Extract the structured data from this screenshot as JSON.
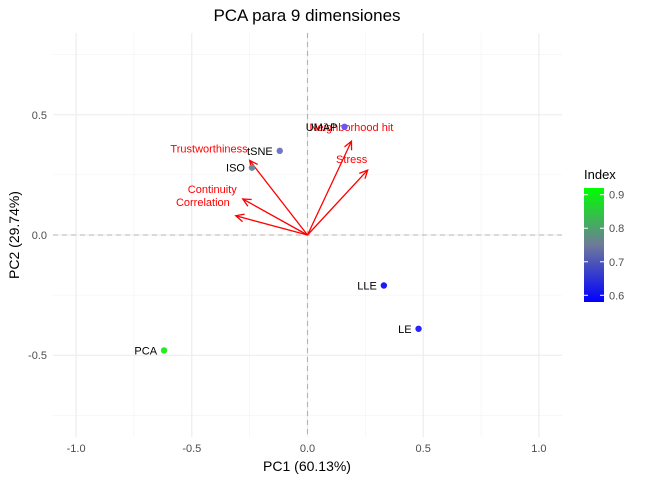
{
  "chart_data": {
    "type": "scatter",
    "title": "PCA para  9 dimensiones",
    "xlabel": "PC1 (60.13%)",
    "ylabel": "PC2 (29.74%)",
    "xlim": [
      -1.1,
      1.1
    ],
    "ylim": [
      -0.84,
      0.84
    ],
    "x_ticks": [
      -1.0,
      -0.5,
      0.0,
      0.5,
      1.0
    ],
    "x_tick_labels": [
      "-1.0",
      "-0.5",
      "0.0",
      "0.5",
      "1.0"
    ],
    "y_ticks": [
      -0.5,
      0.0,
      0.5
    ],
    "y_tick_labels": [
      "-0.5",
      "0.0",
      "0.5"
    ],
    "grid": true,
    "points": [
      {
        "label": "UMAP",
        "x": 0.16,
        "y": 0.45,
        "index": 0.68,
        "color": "#6a55ee"
      },
      {
        "label": "tSNE",
        "x": -0.12,
        "y": 0.35,
        "index": 0.74,
        "color": "#6f78c2"
      },
      {
        "label": "ISO",
        "x": -0.24,
        "y": 0.28,
        "index": 0.78,
        "color": "#6d8a9c"
      },
      {
        "label": "LLE",
        "x": 0.33,
        "y": -0.21,
        "index": 0.6,
        "color": "#1a1aff"
      },
      {
        "label": "LE",
        "x": 0.48,
        "y": -0.39,
        "index": 0.61,
        "color": "#2a22ff"
      },
      {
        "label": "PCA",
        "x": -0.62,
        "y": -0.48,
        "index": 0.92,
        "color": "#22ee22"
      }
    ],
    "loadings": [
      {
        "label": "Neighborhood hit",
        "x": 0.19,
        "y": 0.39
      },
      {
        "label": "Stress",
        "x": 0.26,
        "y": 0.27
      },
      {
        "label": "Trustworthiness",
        "x": -0.25,
        "y": 0.31
      },
      {
        "label": "Continuity",
        "x": -0.28,
        "y": 0.15
      },
      {
        "label": "Correlation",
        "x": -0.31,
        "y": 0.08
      }
    ],
    "legend": {
      "title": "Index",
      "placement": "right",
      "range": [
        0.58,
        0.92
      ],
      "ticks": [
        0.6,
        0.7,
        0.8,
        0.9
      ],
      "tick_labels": [
        "0.6",
        "0.7",
        "0.8",
        "0.9"
      ],
      "low_color": "#0000ff",
      "high_color": "#00ff00"
    }
  }
}
